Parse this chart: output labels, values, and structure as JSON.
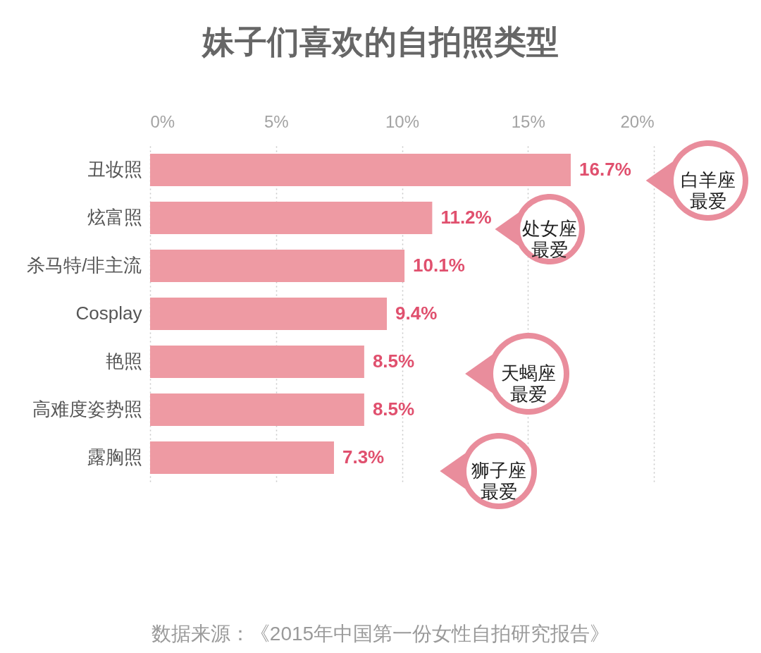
{
  "chart_data": {
    "type": "bar",
    "orientation": "horizontal",
    "title": "妹子们喜欢的自拍照类型",
    "categories": [
      "丑妆照",
      "炫富照",
      "杀马特/非主流",
      "Cosplay",
      "艳照",
      "高难度姿势照",
      "露胸照"
    ],
    "values": [
      16.7,
      11.2,
      10.1,
      9.4,
      8.5,
      8.5,
      7.3
    ],
    "color": "#ee9aa3",
    "value_labels": [
      "16.7%",
      "11.2%",
      "10.1%",
      "9.4%",
      "8.5%",
      "8.5%",
      "7.3%"
    ],
    "xlim": [
      0,
      20
    ],
    "xticks": [
      {
        "value": 0,
        "label": "0%"
      },
      {
        "value": 5,
        "label": "5%"
      },
      {
        "value": 10,
        "label": "10%"
      },
      {
        "value": 15,
        "label": "15%"
      },
      {
        "value": 20,
        "label": "20%"
      }
    ],
    "grid": "x",
    "annotations": [
      "白羊座最爱",
      "处女座最爱",
      "天蝎座最爱",
      "狮子座最爱",
      "数据来源：《2015年中国第一份女性自拍研究报告》"
    ]
  }
}
